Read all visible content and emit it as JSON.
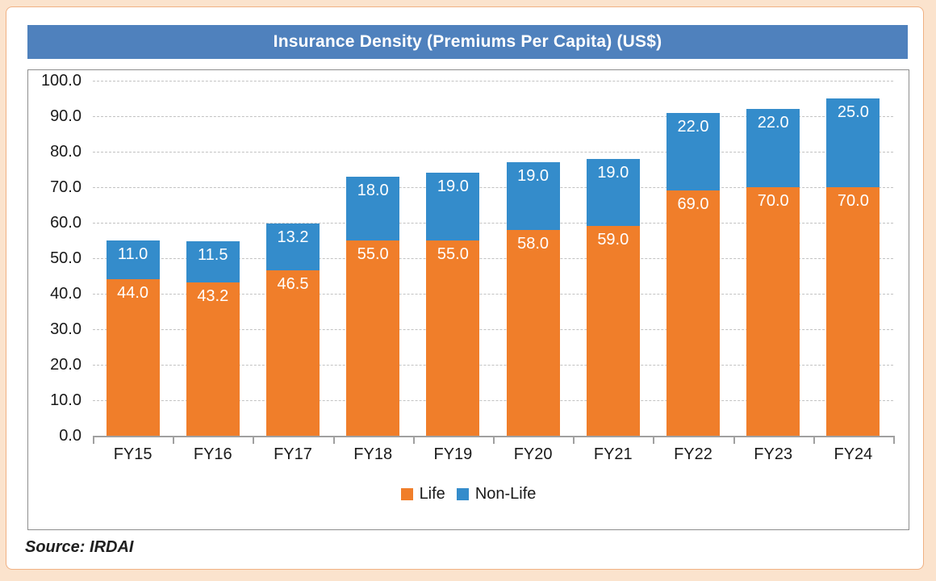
{
  "chart_data": {
    "type": "bar",
    "stacked": true,
    "title": "Insurance Density (Premiums Per Capita) (US$)",
    "categories": [
      "FY15",
      "FY16",
      "FY17",
      "FY18",
      "FY19",
      "FY20",
      "FY21",
      "FY22",
      "FY23",
      "FY24"
    ],
    "series": [
      {
        "name": "Life",
        "color": "#F07E2A",
        "values": [
          44.0,
          43.2,
          46.5,
          55.0,
          55.0,
          58.0,
          59.0,
          69.0,
          70.0,
          70.0
        ]
      },
      {
        "name": "Non-Life",
        "color": "#348CCB",
        "values": [
          11.0,
          11.5,
          13.2,
          18.0,
          19.0,
          19.0,
          19.0,
          22.0,
          22.0,
          25.0
        ]
      }
    ],
    "xlabel": "",
    "ylabel": "",
    "ylim": [
      0,
      100
    ],
    "ytick_step": 10,
    "ytick_decimals": 1,
    "value_label_decimals": 1,
    "grid": "horizontal-dashed",
    "legend_position": "bottom",
    "title_bar_color": "#4F81BD",
    "source": "Source: IRDAI"
  },
  "colors": {
    "page_background": "#FBE3CD",
    "card_border": "#F0B183",
    "title_bar": "#4F81BD",
    "life_bar": "#F07E2A",
    "nonlife_bar": "#348CCB",
    "axis": "#A0A0A0",
    "gridline": "#C2C2C2"
  }
}
